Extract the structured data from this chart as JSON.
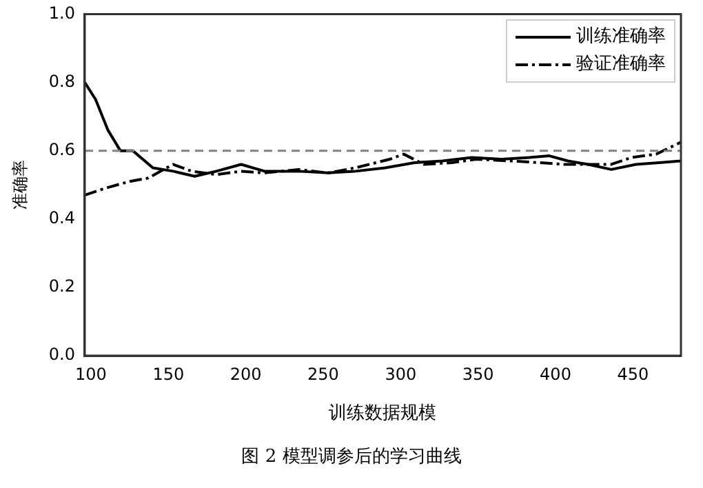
{
  "chart_data": {
    "type": "line",
    "xlabel": "训练数据规模",
    "ylabel": "准确率",
    "annotations": [
      "图 2  模型调参后的学习曲线"
    ],
    "xlim": [
      96,
      481
    ],
    "xticks": [
      100,
      150,
      200,
      250,
      300,
      350,
      400,
      450
    ],
    "ylim": [
      0,
      1
    ],
    "yticks": [
      {
        "value": 0,
        "label": "0.0"
      },
      {
        "value": 0.2,
        "label": "0.2"
      },
      {
        "value": 0.4,
        "label": "0.4"
      },
      {
        "value": 0.6,
        "label": "0.6"
      },
      {
        "value": 0.8,
        "label": "0.8"
      },
      {
        "value": 1,
        "label": "1.0"
      }
    ],
    "grid": false,
    "legend": "top right",
    "marker": "none",
    "ref_lines": [
      {
        "axis": "y",
        "value": 0.6,
        "color": "#808080",
        "line_style": "dashed"
      }
    ],
    "series": [
      {
        "name": "训练准确率",
        "color": "#000000",
        "line_style": "solid",
        "x": [
          96,
          103,
          111,
          119,
          127,
          140,
          153,
          167,
          181,
          197,
          212,
          234,
          253,
          271,
          290,
          309,
          327,
          346,
          365,
          383,
          396,
          408,
          421,
          436,
          452,
          467,
          481
        ],
        "values": [
          0.8,
          0.75,
          0.66,
          0.6,
          0.6,
          0.55,
          0.54,
          0.525,
          0.54,
          0.56,
          0.54,
          0.54,
          0.535,
          0.54,
          0.55,
          0.565,
          0.57,
          0.58,
          0.575,
          0.58,
          0.585,
          0.57,
          0.56,
          0.545,
          0.56,
          0.565,
          0.57
        ]
      },
      {
        "name": "验证准确率",
        "color": "#000000",
        "line_style": "dashdot",
        "x": [
          96,
          109,
          125,
          137,
          153,
          165,
          181,
          197,
          212,
          234,
          253,
          271,
          293,
          302,
          315,
          333,
          349,
          371,
          390,
          405,
          421,
          436,
          449,
          465,
          481
        ],
        "values": [
          0.47,
          0.49,
          0.51,
          0.52,
          0.56,
          0.54,
          0.53,
          0.54,
          0.535,
          0.545,
          0.535,
          0.55,
          0.575,
          0.59,
          0.56,
          0.565,
          0.575,
          0.57,
          0.565,
          0.56,
          0.56,
          0.56,
          0.58,
          0.59,
          0.625
        ]
      }
    ]
  }
}
